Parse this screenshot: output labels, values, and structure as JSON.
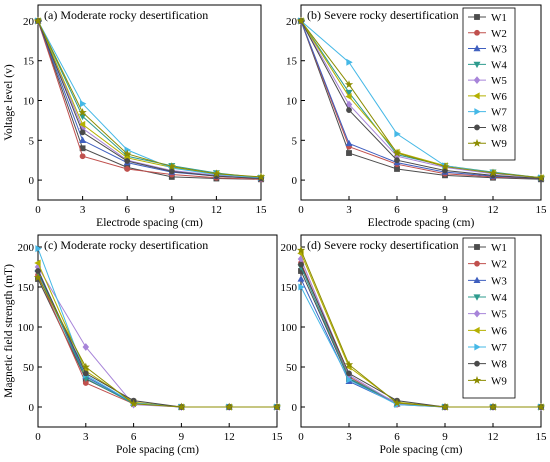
{
  "chart_data": [
    {
      "type": "line",
      "title": "(a) Moderate rocky desertification",
      "xlabel": "Electrode spacing (cm)",
      "ylabel": "Voltage level (v)",
      "x": [
        0,
        3,
        6,
        9,
        12,
        15
      ],
      "xlim": [
        0,
        15
      ],
      "ylim": [
        -2.5,
        22
      ],
      "xticks": [
        0,
        3,
        6,
        9,
        12,
        15
      ],
      "yticks": [
        0,
        5,
        10,
        15,
        20
      ],
      "grid": false,
      "legend": "none",
      "series": [
        {
          "name": "W1",
          "values": [
            20,
            4.0,
            1.6,
            0.4,
            0.2,
            0.1
          ]
        },
        {
          "name": "W2",
          "values": [
            20,
            3.0,
            1.4,
            0.7,
            0.3,
            0.1
          ]
        },
        {
          "name": "W3",
          "values": [
            20,
            5.0,
            2.2,
            1.0,
            0.5,
            0.2
          ]
        },
        {
          "name": "W4",
          "values": [
            20,
            8.0,
            3.0,
            1.8,
            0.9,
            0.3
          ]
        },
        {
          "name": "W5",
          "values": [
            20,
            6.5,
            2.5,
            1.2,
            0.6,
            0.2
          ]
        },
        {
          "name": "W6",
          "values": [
            20,
            7.0,
            2.8,
            1.6,
            0.8,
            0.3
          ]
        },
        {
          "name": "W7",
          "values": [
            20,
            9.6,
            3.8,
            1.5,
            0.7,
            0.3
          ]
        },
        {
          "name": "W8",
          "values": [
            20,
            6.0,
            2.4,
            1.1,
            0.5,
            0.2
          ]
        },
        {
          "name": "W9",
          "values": [
            20,
            8.5,
            3.3,
            1.7,
            0.8,
            0.4
          ]
        }
      ]
    },
    {
      "type": "line",
      "title": "(b) Severe rocky desertification",
      "xlabel": "Electrode spacing (cm)",
      "ylabel": "",
      "x": [
        0,
        3,
        6,
        9,
        12,
        15
      ],
      "xlim": [
        0,
        15
      ],
      "ylim": [
        -2.5,
        22
      ],
      "xticks": [
        0,
        3,
        6,
        9,
        12,
        15
      ],
      "yticks": [
        0,
        5,
        10,
        15,
        20
      ],
      "grid": false,
      "legend": "right",
      "series": [
        {
          "name": "W1",
          "values": [
            20,
            3.4,
            1.4,
            0.6,
            0.3,
            0.1
          ]
        },
        {
          "name": "W2",
          "values": [
            20,
            4.2,
            2.0,
            0.8,
            0.4,
            0.2
          ]
        },
        {
          "name": "W3",
          "values": [
            20,
            4.6,
            2.2,
            1.0,
            0.5,
            0.2
          ]
        },
        {
          "name": "W4",
          "values": [
            20,
            11.0,
            3.2,
            1.8,
            1.0,
            0.3
          ]
        },
        {
          "name": "W5",
          "values": [
            20,
            9.5,
            3.0,
            1.6,
            0.8,
            0.3
          ]
        },
        {
          "name": "W6",
          "values": [
            20,
            10.5,
            3.5,
            1.8,
            0.9,
            0.3
          ]
        },
        {
          "name": "W7",
          "values": [
            20,
            14.8,
            5.8,
            1.8,
            0.9,
            0.3
          ]
        },
        {
          "name": "W8",
          "values": [
            20,
            8.8,
            2.5,
            1.2,
            0.6,
            0.2
          ]
        },
        {
          "name": "W9",
          "values": [
            20,
            12.0,
            3.4,
            1.7,
            0.9,
            0.3
          ]
        }
      ]
    },
    {
      "type": "line",
      "title": "(c) Moderate rocky desertification",
      "xlabel": "Pole spacing (cm)",
      "ylabel": "Magnetic field strength (mT)",
      "x": [
        0,
        3,
        6,
        9,
        12,
        15
      ],
      "xlim": [
        0,
        15
      ],
      "ylim": [
        -25,
        215
      ],
      "xticks": [
        0,
        3,
        6,
        9,
        12,
        15
      ],
      "yticks": [
        0,
        50,
        100,
        150,
        200
      ],
      "grid": false,
      "legend": "none",
      "series": [
        {
          "name": "W1",
          "values": [
            160,
            35,
            5,
            0,
            0,
            0
          ]
        },
        {
          "name": "W2",
          "values": [
            165,
            30,
            4,
            0,
            0,
            0
          ]
        },
        {
          "name": "W3",
          "values": [
            172,
            38,
            5,
            0,
            0,
            0
          ]
        },
        {
          "name": "W4",
          "values": [
            168,
            36,
            4,
            0,
            0,
            0
          ]
        },
        {
          "name": "W5",
          "values": [
            175,
            75,
            3,
            0,
            0,
            0
          ]
        },
        {
          "name": "W6",
          "values": [
            180,
            45,
            6,
            0,
            0,
            0
          ]
        },
        {
          "name": "W7",
          "values": [
            198,
            40,
            5,
            0,
            0,
            0
          ]
        },
        {
          "name": "W8",
          "values": [
            170,
            42,
            8,
            0,
            0,
            0
          ]
        },
        {
          "name": "W9",
          "values": [
            162,
            50,
            4,
            0,
            0,
            0
          ]
        }
      ]
    },
    {
      "type": "line",
      "title": "(d) Severe rocky desertification",
      "xlabel": "Pole spacing (cm)",
      "ylabel": "",
      "x": [
        0,
        3,
        6,
        9,
        12,
        15
      ],
      "xlim": [
        0,
        15
      ],
      "ylim": [
        -25,
        215
      ],
      "xticks": [
        0,
        3,
        6,
        9,
        12,
        15
      ],
      "yticks": [
        0,
        50,
        100,
        150,
        200
      ],
      "grid": false,
      "legend": "right",
      "series": [
        {
          "name": "W1",
          "values": [
            170,
            35,
            4,
            0,
            0,
            0
          ]
        },
        {
          "name": "W2",
          "values": [
            180,
            38,
            3,
            0,
            0,
            0
          ]
        },
        {
          "name": "W3",
          "values": [
            160,
            32,
            4,
            0,
            0,
            0
          ]
        },
        {
          "name": "W4",
          "values": [
            175,
            36,
            5,
            0,
            0,
            0
          ]
        },
        {
          "name": "W5",
          "values": [
            185,
            40,
            4,
            0,
            0,
            0
          ]
        },
        {
          "name": "W6",
          "values": [
            192,
            50,
            6,
            0,
            0,
            0
          ]
        },
        {
          "name": "W7",
          "values": [
            150,
            34,
            3,
            0,
            0,
            0
          ]
        },
        {
          "name": "W8",
          "values": [
            178,
            42,
            8,
            0,
            0,
            0
          ]
        },
        {
          "name": "W9",
          "values": [
            196,
            53,
            5,
            0,
            0,
            0
          ]
        }
      ]
    }
  ],
  "style": {
    "series_colors": [
      "#4d4d4d",
      "#c0504d",
      "#3f5fbf",
      "#2e9b8e",
      "#a784d9",
      "#b4b000",
      "#45b8e6",
      "#4a4a4a",
      "#8c8c00"
    ],
    "series_markers": [
      "square",
      "circle",
      "triangle-up",
      "triangle-down",
      "diamond",
      "triangle-left",
      "triangle-right",
      "circle",
      "star"
    ]
  }
}
